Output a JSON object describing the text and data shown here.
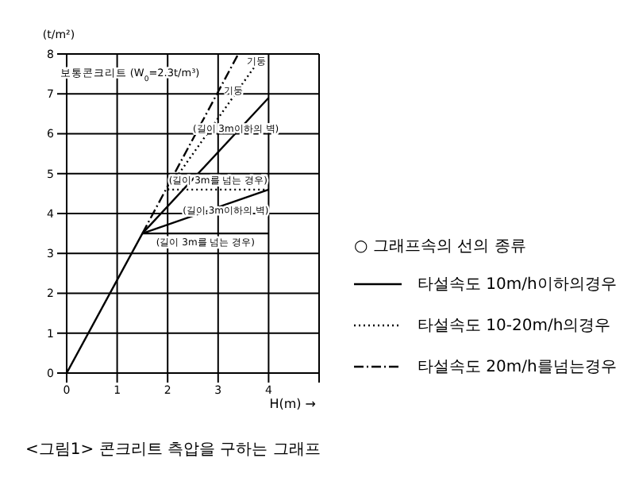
{
  "chart_data": {
    "type": "line",
    "title": "<그림1> 콘크리트 측압을 구하는 그래프",
    "xlabel": "H(m) →",
    "ylabel": "(t/m²)",
    "legend_title": "○ 그래프속의 선의 종류",
    "xlim": [
      0,
      5
    ],
    "xticks": [
      0,
      1,
      2,
      3,
      4,
      {
        "value": 5,
        "label": null
      }
    ],
    "ylim": [
      0,
      8
    ],
    "yticks": [
      0,
      1,
      2,
      3,
      4,
      5,
      6,
      7,
      8
    ],
    "grid": true,
    "legend": "right",
    "marker": "none",
    "series": [
      {
        "name": "타설속도 10m/h이하의경우",
        "color": "#000000",
        "line_style": "solid",
        "x": [
          0,
          1.5,
          4
        ],
        "values": [
          0,
          3.5,
          6.9
        ]
      },
      {
        "color": "#000000",
        "line_style": "solid",
        "x": [
          1.5,
          4
        ],
        "values": [
          3.5,
          4.6
        ]
      },
      {
        "color": "#000000",
        "line_style": "solid",
        "x": [
          1.5,
          4
        ],
        "values": [
          3.5,
          3.5
        ]
      },
      {
        "name": "타설속도 10-20m/h의경우",
        "color": "#000000",
        "line_style": "dotted",
        "x": [
          2,
          3.9
        ],
        "values": [
          4.6,
          8
        ]
      },
      {
        "color": "#000000",
        "line_style": "dotted",
        "x": [
          2,
          4
        ],
        "values": [
          4.6,
          4.6
        ]
      },
      {
        "name": "타설속도 20m/h를넘는경우",
        "color": "#000000",
        "line_style": "dashdot",
        "x": [
          1.5,
          3.4
        ],
        "values": [
          3.5,
          8
        ]
      }
    ],
    "annotations": [
      "보통콘크리트 (W$_{0}$=2.3t/m³)",
      "기둥",
      "기둥",
      "(길이 3m이하의 벽)",
      "(길이 3m를 넘는 경우)",
      "(길이 3m이하의 벽)",
      "(길이 3m를 넘는 경우)"
    ]
  }
}
